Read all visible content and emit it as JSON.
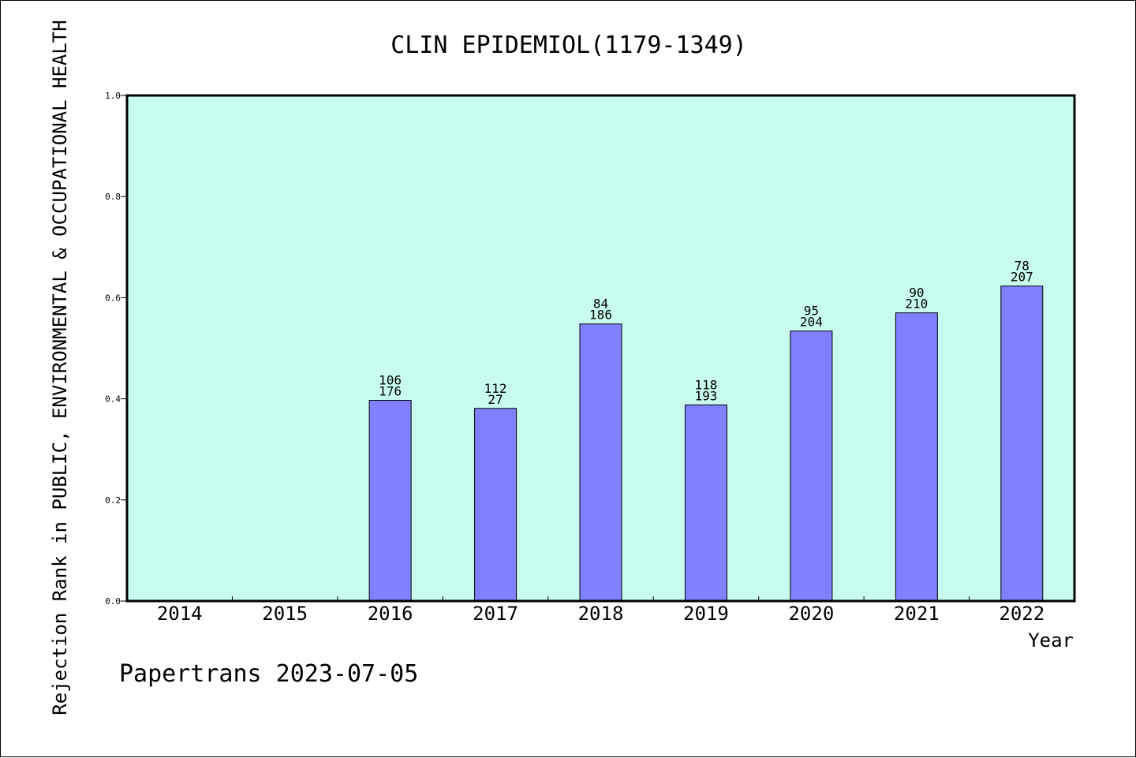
{
  "chart_data": {
    "type": "bar",
    "title": "CLIN EPIDEMIOL(1179-1349)",
    "ylabel": "Rejection Rank in PUBLIC, ENVIRONMENTAL & OCCUPATIONAL HEALTH",
    "xlabel": "Year",
    "ylim": [
      0,
      1.0
    ],
    "yticks": [
      "0.0",
      "0.2",
      "0.4",
      "0.6",
      "0.8",
      "1.0"
    ],
    "categories": [
      "2014",
      "2015",
      "2016",
      "2017",
      "2018",
      "2019",
      "2020",
      "2021",
      "2022"
    ],
    "values": [
      null,
      null,
      0.397,
      0.381,
      0.548,
      0.388,
      0.534,
      0.57,
      0.623
    ],
    "labels_top": [
      "",
      "",
      "106",
      "112",
      "84",
      "118",
      "95",
      "90",
      "78"
    ],
    "labels_bottom": [
      "",
      "",
      "176",
      "27",
      "186",
      "193",
      "204",
      "210",
      "207"
    ],
    "grid": false,
    "colors": {
      "plot_bg": "#c8fcee",
      "bar": "#8080ff",
      "bar_edge": "#000000"
    }
  },
  "footer": "Papertrans 2023-07-05"
}
